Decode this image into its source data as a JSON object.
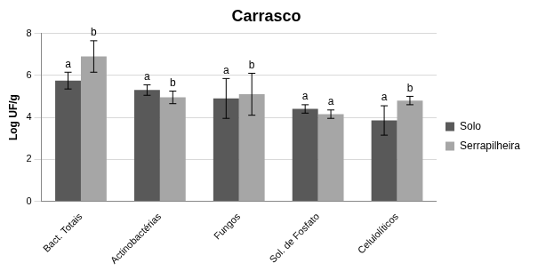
{
  "chart_data": {
    "type": "bar",
    "title": "Carrasco",
    "y_label": "Log UF/g",
    "categories": [
      "Bact. Totais",
      "Actinobactérias",
      "Fungos",
      "Sol. de Fosfato",
      "Celulolíticos"
    ],
    "series": [
      {
        "name": "Solo",
        "color": "#595959",
        "values": [
          5.75,
          5.3,
          4.9,
          4.4,
          3.85
        ],
        "errors": [
          0.4,
          0.25,
          0.95,
          0.2,
          0.7
        ],
        "letters": [
          "a",
          "a",
          "a",
          "a",
          "a"
        ]
      },
      {
        "name": "Serrapilheira",
        "color": "#a6a6a6",
        "values": [
          6.9,
          4.95,
          5.1,
          4.15,
          4.8
        ],
        "errors": [
          0.75,
          0.3,
          1.0,
          0.2,
          0.2
        ],
        "letters": [
          "b",
          "b",
          "b",
          "a",
          "b"
        ]
      }
    ],
    "ylim": [
      0,
      8
    ],
    "yticks": [
      0,
      2,
      4,
      6,
      8
    ],
    "grid": true,
    "legend": "right"
  }
}
